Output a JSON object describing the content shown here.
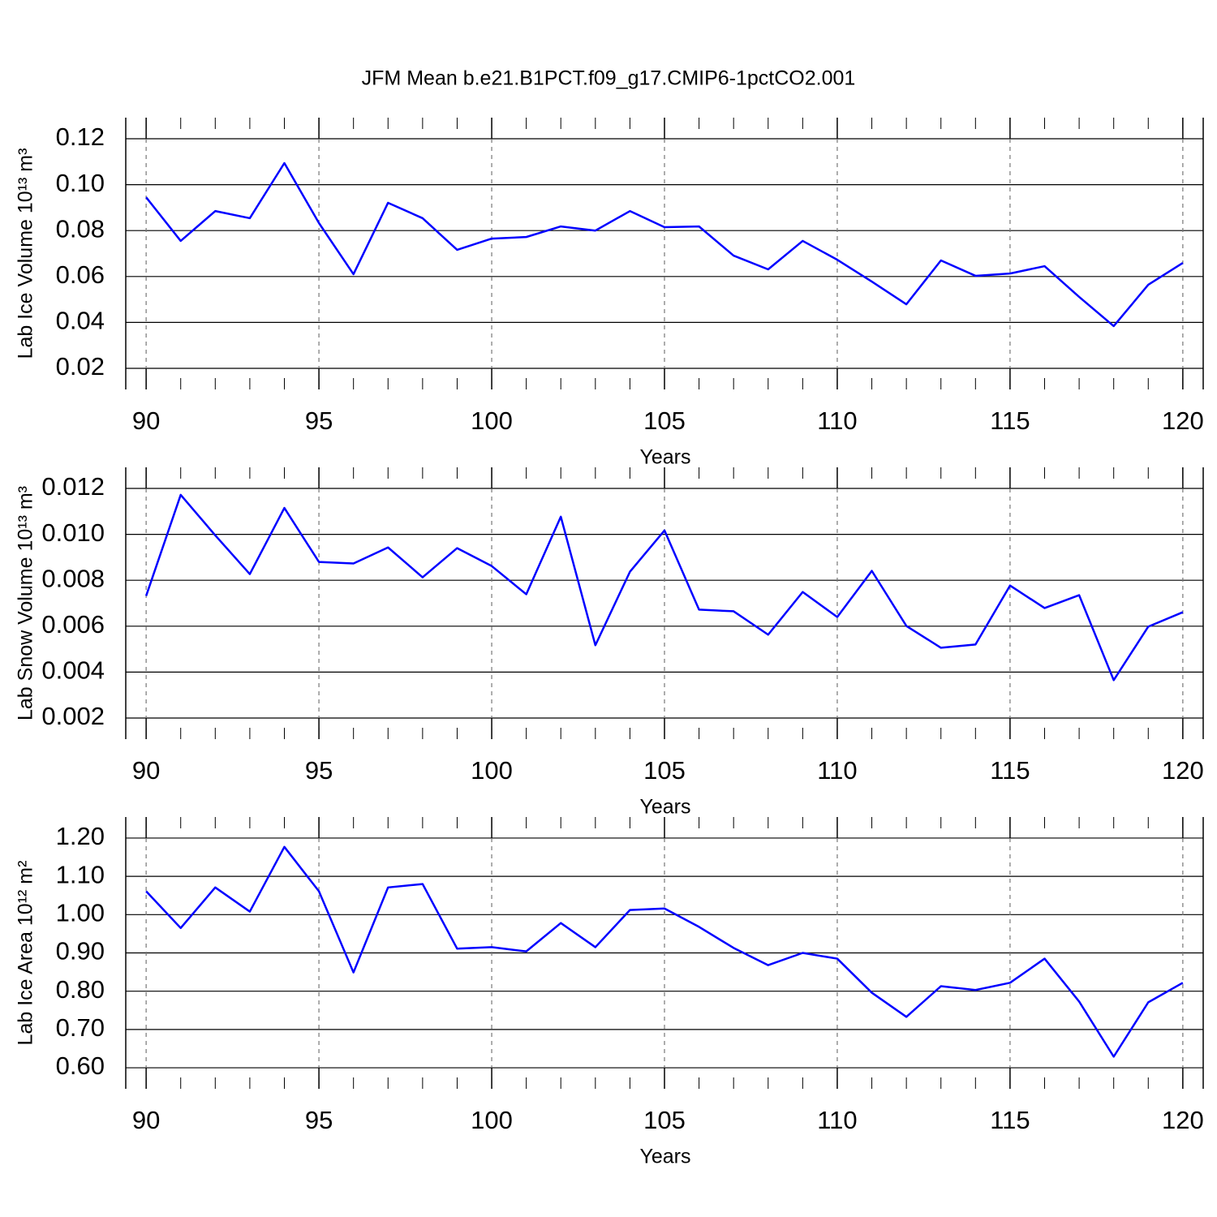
{
  "title": "JFM Mean b.e21.B1PCT.f09_g17.CMIP6-1pctCO2.001",
  "chart_data": [
    {
      "type": "line",
      "ylabel": "Lab Ice Volume 10¹³ m³",
      "xlabel": "Years",
      "color": "#0000ff",
      "grid": true,
      "x": [
        90,
        91,
        92,
        93,
        94,
        95,
        96,
        97,
        98,
        99,
        100,
        101,
        102,
        103,
        104,
        105,
        106,
        107,
        108,
        109,
        110,
        111,
        112,
        113,
        114,
        115,
        116,
        117,
        118,
        119,
        120
      ],
      "values": [
        0.0945,
        0.0755,
        0.0885,
        0.0854,
        0.1094,
        0.0833,
        0.061,
        0.0921,
        0.0854,
        0.0716,
        0.0765,
        0.0772,
        0.0818,
        0.08,
        0.0885,
        0.0815,
        0.0818,
        0.0691,
        0.0631,
        0.0755,
        0.0673,
        0.0578,
        0.0479,
        0.067,
        0.0603,
        0.0613,
        0.0645,
        0.0511,
        0.0384,
        0.0564,
        0.0659
      ],
      "xlim": [
        89.41,
        120.59
      ],
      "ylim": [
        0.0108,
        0.1292
      ],
      "xticks": [
        90,
        95,
        100,
        105,
        110,
        115,
        120
      ],
      "yticks": [
        0.02,
        0.04,
        0.06,
        0.08,
        {
          "value": 0.1,
          "label": "0.10"
        },
        0.12
      ]
    },
    {
      "type": "line",
      "ylabel": "Lab Snow Volume 10¹³ m³",
      "xlabel": "Years",
      "color": "#0000ff",
      "grid": true,
      "x": [
        90,
        91,
        92,
        93,
        94,
        95,
        96,
        97,
        98,
        99,
        100,
        101,
        102,
        103,
        104,
        105,
        106,
        107,
        108,
        109,
        110,
        111,
        112,
        113,
        114,
        115,
        116,
        117,
        118,
        119,
        120
      ],
      "values": [
        0.00732,
        0.01172,
        0.00996,
        0.00827,
        0.01115,
        0.0088,
        0.00873,
        0.00943,
        0.00813,
        0.0094,
        0.00862,
        0.00739,
        0.01077,
        0.00517,
        0.00837,
        0.01017,
        0.00672,
        0.00665,
        0.00563,
        0.00749,
        0.0064,
        0.00841,
        0.00601,
        0.00506,
        0.0052,
        0.00777,
        0.00679,
        0.00735,
        0.00365,
        0.00598,
        0.00661
      ],
      "xlim": [
        89.41,
        120.59
      ],
      "ylim": [
        0.00108,
        0.01292
      ],
      "xticks": [
        90,
        95,
        100,
        105,
        110,
        115,
        120
      ],
      "yticks": [
        0.002,
        0.004,
        0.006,
        0.008,
        {
          "value": 0.01,
          "label": "0.010"
        },
        0.012
      ]
    },
    {
      "type": "line",
      "ylabel": "Lab Ice Area 10¹² m²",
      "xlabel": "Years",
      "color": "#0000ff",
      "grid": true,
      "x": [
        90,
        91,
        92,
        93,
        94,
        95,
        96,
        97,
        98,
        99,
        100,
        101,
        102,
        103,
        104,
        105,
        106,
        107,
        108,
        109,
        110,
        111,
        112,
        113,
        114,
        115,
        116,
        117,
        118,
        119,
        120
      ],
      "values": [
        1.061,
        0.965,
        1.071,
        1.008,
        1.177,
        1.061,
        0.849,
        1.071,
        1.08,
        0.911,
        0.915,
        0.904,
        0.978,
        0.915,
        1.012,
        1.016,
        0.968,
        0.913,
        0.868,
        0.9,
        0.885,
        0.796,
        0.733,
        0.813,
        0.803,
        0.822,
        0.885,
        0.773,
        0.629,
        0.771,
        0.822
      ],
      "xlim": [
        89.41,
        120.59
      ],
      "ylim": [
        0.545,
        1.255
      ],
      "xticks": [
        90,
        95,
        100,
        105,
        110,
        115,
        120
      ],
      "yticks": [
        {
          "value": 0.6,
          "label": "0.60"
        },
        {
          "value": 0.7,
          "label": "0.70"
        },
        {
          "value": 0.8,
          "label": "0.80"
        },
        {
          "value": 0.9,
          "label": "0.90"
        },
        {
          "value": 1.0,
          "label": "1.00"
        },
        {
          "value": 1.1,
          "label": "1.10"
        },
        {
          "value": 1.2,
          "label": "1.20"
        }
      ]
    }
  ]
}
